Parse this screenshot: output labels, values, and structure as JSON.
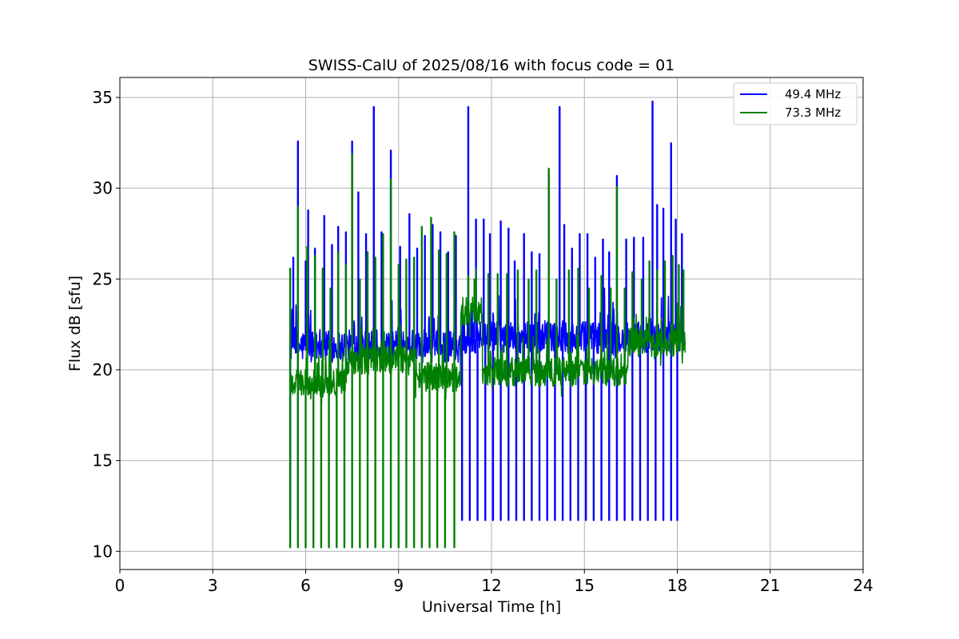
{
  "chart_data": {
    "type": "line",
    "title": "SWISS-CalU of 2025/08/16 with focus code = 01",
    "xlabel": "Universal Time [h]",
    "ylabel": "Flux dB [sfu]",
    "xlim": [
      0,
      24
    ],
    "ylim": [
      9,
      36.1
    ],
    "x_ticks": [
      0,
      3,
      6,
      9,
      12,
      15,
      18,
      21,
      24
    ],
    "x_tick_labels": [
      "0",
      "3",
      "6",
      "9",
      "12",
      "15",
      "18",
      "21",
      "24"
    ],
    "y_ticks": [
      10,
      15,
      20,
      25,
      30,
      35
    ],
    "y_tick_labels": [
      "10",
      "15",
      "20",
      "25",
      "30",
      "35"
    ],
    "grid": true,
    "legend_position": "top-right",
    "series": [
      {
        "name": "49.4 MHz",
        "color": "#0000ff",
        "data_range": [
          5.5,
          18.25
        ],
        "baseline_segments": [
          [
            5.5,
            11.0,
            21.3
          ],
          [
            11.0,
            16.4,
            21.8
          ],
          [
            16.4,
            18.25,
            21.8
          ]
        ],
        "calibration_dips": [
          5.5,
          5.75,
          11.05,
          11.3,
          11.55,
          11.8,
          12.05,
          12.3,
          12.55,
          12.8,
          13.05,
          13.3,
          13.55,
          13.8,
          14.05,
          14.3,
          14.55,
          14.8,
          15.05,
          15.3,
          15.55,
          15.8,
          16.05,
          16.3,
          16.55,
          16.8,
          17.05,
          17.3,
          17.55,
          17.8,
          18.0
        ],
        "dip_value": 11.7,
        "peaks": [
          [
            5.6,
            26.2
          ],
          [
            5.75,
            32.6
          ],
          [
            6.0,
            26.0
          ],
          [
            6.08,
            28.8
          ],
          [
            6.3,
            26.7
          ],
          [
            6.6,
            28.5
          ],
          [
            6.85,
            26.9
          ],
          [
            7.05,
            27.9
          ],
          [
            7.3,
            27.6
          ],
          [
            7.5,
            32.6
          ],
          [
            7.7,
            29.8
          ],
          [
            7.95,
            27.5
          ],
          [
            8.2,
            34.5
          ],
          [
            8.45,
            27.6
          ],
          [
            8.75,
            32.1
          ],
          [
            9.05,
            26.8
          ],
          [
            9.35,
            28.6
          ],
          [
            9.6,
            26.7
          ],
          [
            9.85,
            27.4
          ],
          [
            10.1,
            28.0
          ],
          [
            10.35,
            27.6
          ],
          [
            10.6,
            26.5
          ],
          [
            10.85,
            27.4
          ],
          [
            11.25,
            34.5
          ],
          [
            11.5,
            28.3
          ],
          [
            11.75,
            28.3
          ],
          [
            11.95,
            27.5
          ],
          [
            12.3,
            28.2
          ],
          [
            12.55,
            27.8
          ],
          [
            12.75,
            26.0
          ],
          [
            13.05,
            27.5
          ],
          [
            13.3,
            26.5
          ],
          [
            13.55,
            26.4
          ],
          [
            13.85,
            30.8
          ],
          [
            14.2,
            34.5
          ],
          [
            14.35,
            28.0
          ],
          [
            14.6,
            26.7
          ],
          [
            14.85,
            27.5
          ],
          [
            15.1,
            27.5
          ],
          [
            15.35,
            26.2
          ],
          [
            15.6,
            27.2
          ],
          [
            15.8,
            26.5
          ],
          [
            16.05,
            30.7
          ],
          [
            16.35,
            27.2
          ],
          [
            16.6,
            27.3
          ],
          [
            16.9,
            27.3
          ],
          [
            17.2,
            34.8
          ],
          [
            17.35,
            29.1
          ],
          [
            17.55,
            28.9
          ],
          [
            17.8,
            32.5
          ],
          [
            17.95,
            28.3
          ],
          [
            18.15,
            27.5
          ]
        ]
      },
      {
        "name": "73.3 MHz",
        "color": "#008000",
        "data_range": [
          5.5,
          18.25
        ],
        "baseline_segments": [
          [
            5.5,
            7.3,
            19.3
          ],
          [
            7.3,
            9.5,
            20.5
          ],
          [
            9.5,
            11.0,
            19.6
          ],
          [
            11.0,
            11.7,
            23.2
          ],
          [
            11.7,
            16.4,
            19.9
          ],
          [
            16.4,
            18.25,
            21.5
          ]
        ],
        "calibration_dips": [
          5.5,
          5.75,
          6.0,
          6.25,
          6.5,
          6.75,
          7.0,
          7.25,
          7.5,
          7.75,
          8.0,
          8.25,
          8.5,
          8.75,
          9.0,
          9.25,
          9.5,
          9.75,
          10.0,
          10.25,
          10.5,
          10.8
        ],
        "dip_value": 10.2,
        "peaks": [
          [
            5.5,
            25.6
          ],
          [
            5.75,
            29.0
          ],
          [
            6.05,
            26.8
          ],
          [
            6.3,
            26.3
          ],
          [
            6.55,
            25.6
          ],
          [
            6.8,
            24.5
          ],
          [
            7.05,
            26.5
          ],
          [
            7.3,
            25.8
          ],
          [
            7.5,
            31.9
          ],
          [
            7.75,
            25.0
          ],
          [
            8.0,
            26.5
          ],
          [
            8.25,
            26.2
          ],
          [
            8.5,
            27.5
          ],
          [
            8.75,
            30.5
          ],
          [
            9.0,
            25.8
          ],
          [
            9.25,
            26.1
          ],
          [
            9.5,
            26.2
          ],
          [
            9.75,
            27.9
          ],
          [
            10.05,
            28.4
          ],
          [
            10.3,
            26.6
          ],
          [
            10.55,
            26.4
          ],
          [
            10.8,
            27.6
          ],
          [
            11.25,
            25.2
          ],
          [
            11.45,
            25.0
          ],
          [
            11.9,
            25.3
          ],
          [
            12.2,
            25.3
          ],
          [
            12.5,
            25.3
          ],
          [
            12.85,
            25.5
          ],
          [
            13.2,
            25.0
          ],
          [
            13.45,
            25.5
          ],
          [
            13.85,
            31.1
          ],
          [
            14.1,
            25.0
          ],
          [
            14.5,
            25.5
          ],
          [
            14.8,
            25.6
          ],
          [
            15.15,
            24.5
          ],
          [
            15.55,
            25.2
          ],
          [
            15.85,
            24.5
          ],
          [
            16.05,
            30.1
          ],
          [
            16.3,
            24.5
          ],
          [
            16.55,
            25.4
          ],
          [
            16.85,
            25.0
          ],
          [
            17.1,
            26.0
          ],
          [
            17.35,
            25.5
          ],
          [
            17.6,
            26.0
          ],
          [
            17.85,
            26.3
          ],
          [
            18.05,
            25.8
          ],
          [
            18.2,
            25.5
          ]
        ]
      }
    ]
  }
}
